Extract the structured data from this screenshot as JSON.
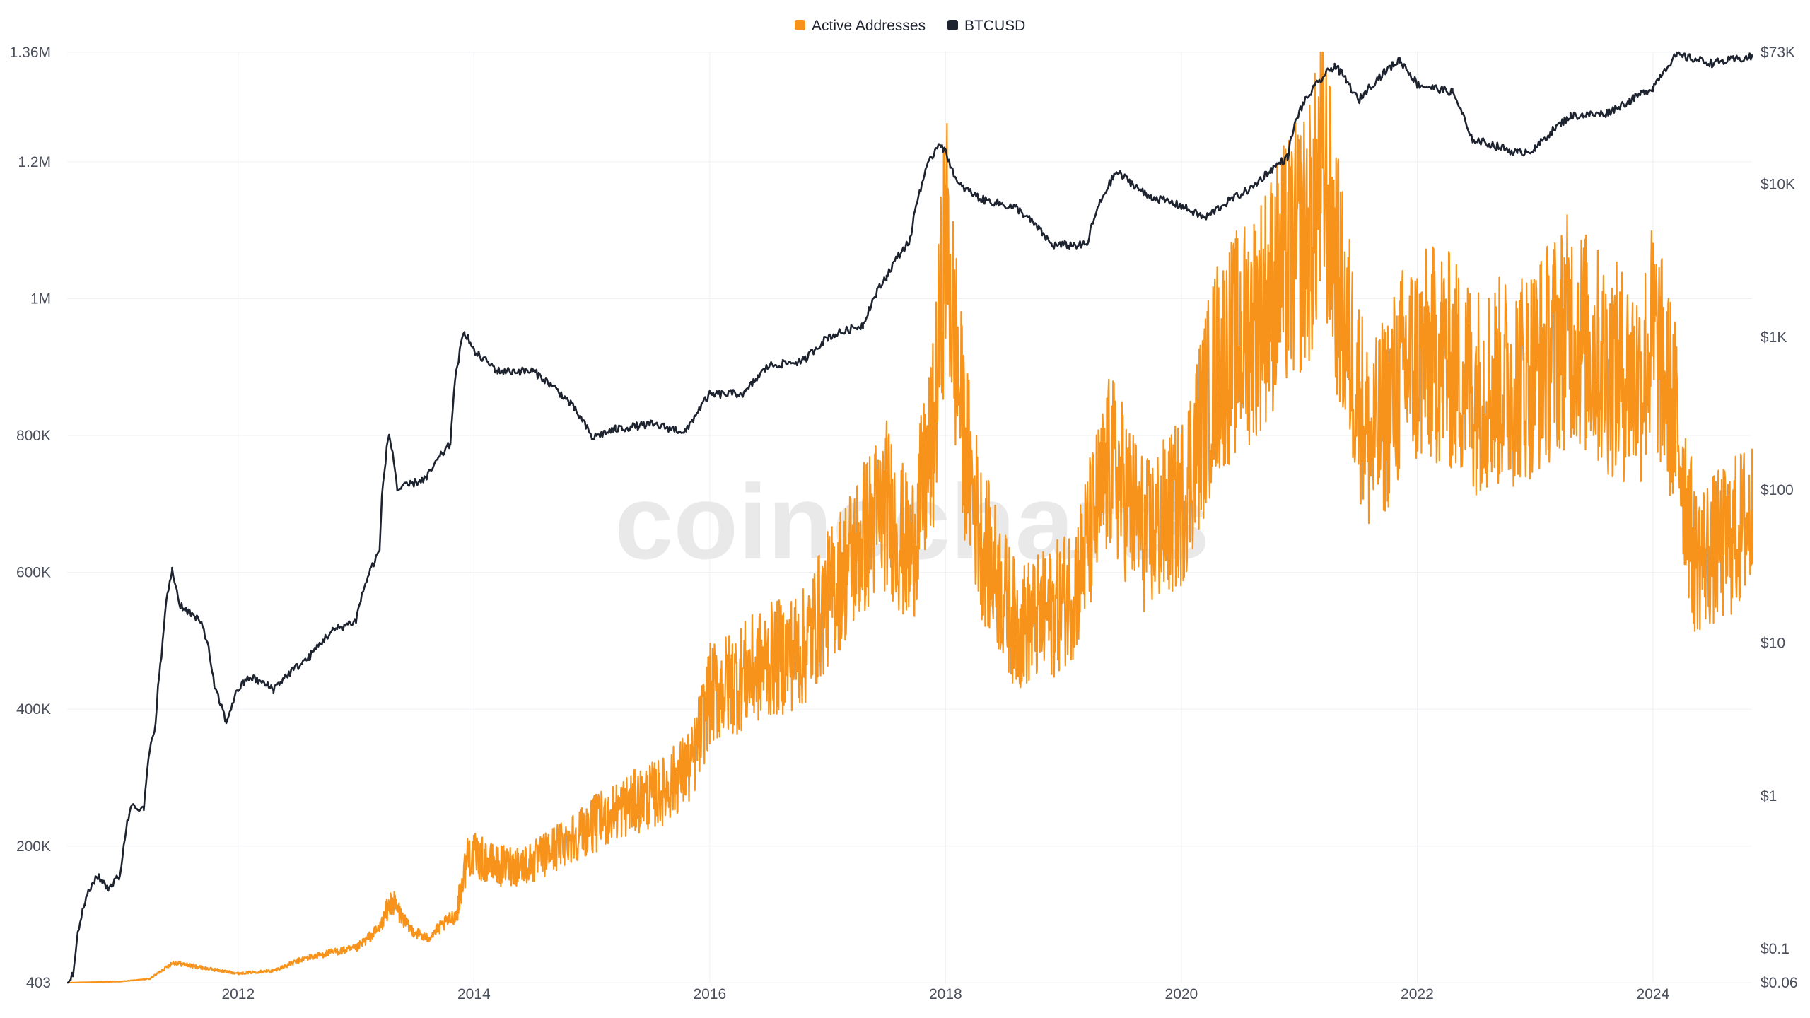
{
  "watermark": "coinecharts",
  "legend": [
    {
      "label": "Active Addresses",
      "color": "#f7931a"
    },
    {
      "label": "BTCUSD",
      "color": "#1e2330"
    }
  ],
  "chart_data": {
    "type": "line",
    "title": "",
    "legend_position": "top-center",
    "grid": true,
    "x_ticks": [
      "2012",
      "2014",
      "2016",
      "2018",
      "2020",
      "2022",
      "2024"
    ],
    "x_range": [
      2010.55,
      2024.84
    ],
    "left_axis": {
      "scale": "linear",
      "range": [
        403,
        1360000
      ],
      "ticks": [
        {
          "value": 403,
          "label": "403"
        },
        {
          "value": 200000,
          "label": "200K"
        },
        {
          "value": 400000,
          "label": "400K"
        },
        {
          "value": 600000,
          "label": "600K"
        },
        {
          "value": 800000,
          "label": "800K"
        },
        {
          "value": 1000000,
          "label": "1M"
        },
        {
          "value": 1200000,
          "label": "1.2M"
        },
        {
          "value": 1360000,
          "label": "1.36M"
        }
      ]
    },
    "right_axis": {
      "scale": "log",
      "range": [
        0.06,
        73000
      ],
      "ticks": [
        {
          "value": 0.06,
          "label": "$0.06"
        },
        {
          "value": 0.1,
          "label": "$0.1"
        },
        {
          "value": 1,
          "label": "$1"
        },
        {
          "value": 10,
          "label": "$10"
        },
        {
          "value": 100,
          "label": "$100"
        },
        {
          "value": 1000,
          "label": "$1K"
        },
        {
          "value": 10000,
          "label": "$10K"
        },
        {
          "value": 73000,
          "label": "$73K"
        }
      ]
    },
    "series": [
      {
        "name": "Active Addresses",
        "axis": "left",
        "color": "#f7931a",
        "points": [
          [
            2010.55,
            403
          ],
          [
            2011.0,
            2000
          ],
          [
            2011.25,
            6000
          ],
          [
            2011.45,
            30000
          ],
          [
            2011.7,
            22000
          ],
          [
            2012.0,
            14000
          ],
          [
            2012.3,
            18000
          ],
          [
            2012.55,
            35000
          ],
          [
            2012.8,
            45000
          ],
          [
            2013.0,
            50000
          ],
          [
            2013.2,
            80000
          ],
          [
            2013.3,
            120000
          ],
          [
            2013.45,
            80000
          ],
          [
            2013.6,
            65000
          ],
          [
            2013.85,
            100000
          ],
          [
            2013.95,
            190000
          ],
          [
            2014.2,
            170000
          ],
          [
            2014.5,
            175000
          ],
          [
            2014.8,
            210000
          ],
          [
            2015.0,
            230000
          ],
          [
            2015.3,
            260000
          ],
          [
            2015.6,
            280000
          ],
          [
            2015.85,
            320000
          ],
          [
            2016.0,
            420000
          ],
          [
            2016.2,
            440000
          ],
          [
            2016.5,
            470000
          ],
          [
            2016.8,
            490000
          ],
          [
            2017.0,
            560000
          ],
          [
            2017.3,
            650000
          ],
          [
            2017.5,
            700000
          ],
          [
            2017.7,
            620000
          ],
          [
            2017.9,
            800000
          ],
          [
            2018.0,
            1100000
          ],
          [
            2018.15,
            800000
          ],
          [
            2018.3,
            650000
          ],
          [
            2018.6,
            520000
          ],
          [
            2018.9,
            540000
          ],
          [
            2019.1,
            580000
          ],
          [
            2019.4,
            760000
          ],
          [
            2019.7,
            650000
          ],
          [
            2020.0,
            700000
          ],
          [
            2020.3,
            900000
          ],
          [
            2020.6,
            960000
          ],
          [
            2020.9,
            1050000
          ],
          [
            2021.1,
            1100000
          ],
          [
            2021.2,
            1200000
          ],
          [
            2021.35,
            1000000
          ],
          [
            2021.6,
            780000
          ],
          [
            2021.9,
            900000
          ],
          [
            2022.2,
            920000
          ],
          [
            2022.5,
            870000
          ],
          [
            2022.8,
            880000
          ],
          [
            2023.0,
            900000
          ],
          [
            2023.3,
            960000
          ],
          [
            2023.6,
            900000
          ],
          [
            2023.9,
            880000
          ],
          [
            2024.0,
            950000
          ],
          [
            2024.2,
            820000
          ],
          [
            2024.35,
            620000
          ],
          [
            2024.6,
            640000
          ],
          [
            2024.84,
            680000
          ]
        ]
      },
      {
        "name": "BTCUSD",
        "axis": "right",
        "color": "#1e2330",
        "points": [
          [
            2010.55,
            0.06
          ],
          [
            2010.6,
            0.07
          ],
          [
            2010.7,
            0.2
          ],
          [
            2010.8,
            0.3
          ],
          [
            2010.9,
            0.25
          ],
          [
            2011.0,
            0.3
          ],
          [
            2011.1,
            0.9
          ],
          [
            2011.2,
            0.8
          ],
          [
            2011.3,
            3
          ],
          [
            2011.35,
            8
          ],
          [
            2011.44,
            30
          ],
          [
            2011.5,
            18
          ],
          [
            2011.7,
            13
          ],
          [
            2011.8,
            5
          ],
          [
            2011.9,
            3
          ],
          [
            2012.0,
            5
          ],
          [
            2012.1,
            6
          ],
          [
            2012.3,
            5
          ],
          [
            2012.6,
            8
          ],
          [
            2012.8,
            12
          ],
          [
            2013.0,
            14
          ],
          [
            2013.2,
            40
          ],
          [
            2013.28,
            230
          ],
          [
            2013.35,
            100
          ],
          [
            2013.6,
            120
          ],
          [
            2013.8,
            200
          ],
          [
            2013.92,
            1100
          ],
          [
            2014.0,
            800
          ],
          [
            2014.2,
            600
          ],
          [
            2014.5,
            600
          ],
          [
            2014.8,
            380
          ],
          [
            2015.0,
            220
          ],
          [
            2015.2,
            250
          ],
          [
            2015.5,
            270
          ],
          [
            2015.8,
            240
          ],
          [
            2016.0,
            420
          ],
          [
            2016.3,
            430
          ],
          [
            2016.5,
            650
          ],
          [
            2016.8,
            700
          ],
          [
            2017.0,
            1000
          ],
          [
            2017.3,
            1200
          ],
          [
            2017.5,
            2500
          ],
          [
            2017.7,
            4300
          ],
          [
            2017.95,
            19000
          ],
          [
            2018.1,
            10000
          ],
          [
            2018.3,
            8000
          ],
          [
            2018.6,
            7000
          ],
          [
            2018.9,
            4000
          ],
          [
            2019.2,
            4000
          ],
          [
            2019.45,
            12000
          ],
          [
            2019.7,
            8500
          ],
          [
            2020.0,
            7200
          ],
          [
            2020.2,
            6000
          ],
          [
            2020.6,
            9500
          ],
          [
            2020.9,
            15000
          ],
          [
            2021.0,
            30000
          ],
          [
            2021.3,
            60000
          ],
          [
            2021.5,
            35000
          ],
          [
            2021.85,
            65000
          ],
          [
            2022.0,
            45000
          ],
          [
            2022.3,
            40000
          ],
          [
            2022.45,
            20000
          ],
          [
            2022.85,
            16000
          ],
          [
            2023.0,
            17000
          ],
          [
            2023.3,
            28000
          ],
          [
            2023.6,
            29000
          ],
          [
            2023.8,
            35000
          ],
          [
            2024.0,
            43000
          ],
          [
            2024.2,
            70000
          ],
          [
            2024.5,
            62000
          ],
          [
            2024.84,
            68000
          ]
        ]
      }
    ]
  }
}
